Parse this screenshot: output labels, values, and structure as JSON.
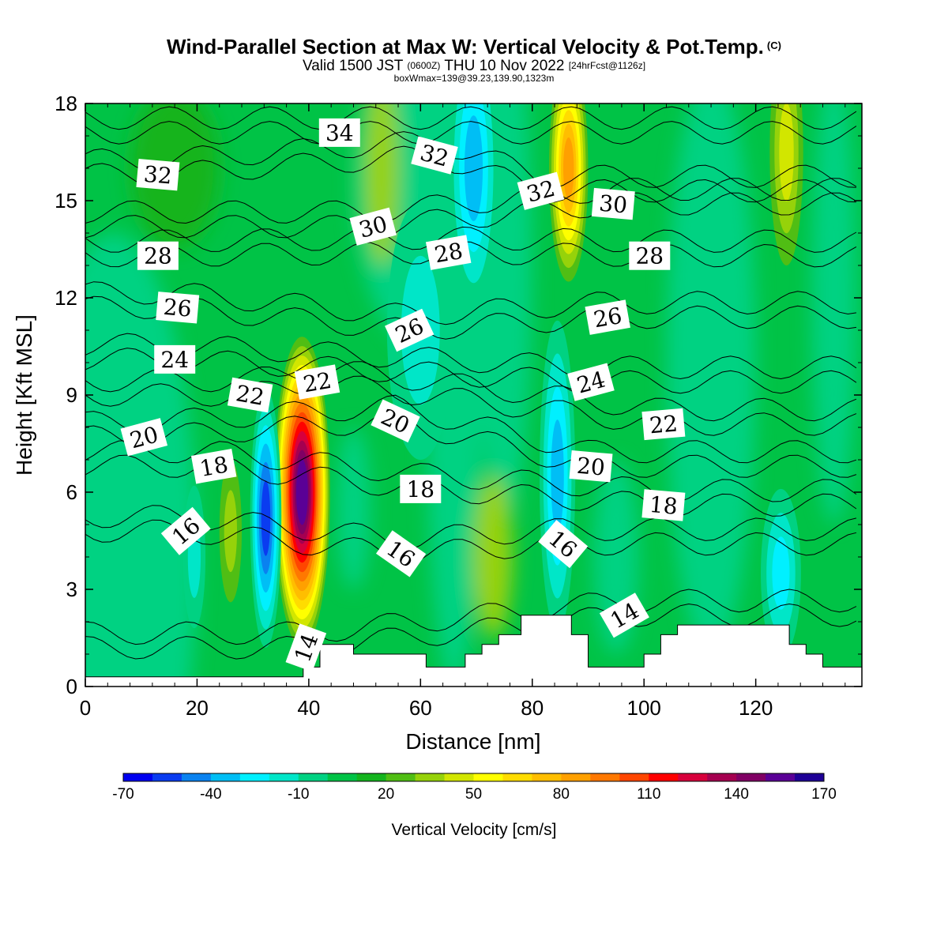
{
  "titles": {
    "main": "Wind-Parallel Section at Max W: Vertical Velocity & Pot.Temp.",
    "copyright": "(C)",
    "valid_prefix": "Valid 1500 JST",
    "valid_utc": "(0600Z)",
    "valid_date": "THU 10 Nov 2022",
    "valid_fcst": "[24hrFcst@1126z]",
    "box": "boxWmax=139@39.23,139.90,1323m"
  },
  "chart_data": {
    "type": "heatmap",
    "title": "Wind-Parallel Section at Max W: Vertical Velocity & Pot.Temp.",
    "xlabel": "Distance [nm]",
    "ylabel": "Height [Kft MSL]",
    "xlim": [
      0,
      139
    ],
    "ylim": [
      0,
      18
    ],
    "x_ticks": [
      "0",
      "20",
      "40",
      "60",
      "80",
      "100",
      "120"
    ],
    "y_ticks": [
      "0",
      "3",
      "6",
      "9",
      "12",
      "15",
      "18"
    ],
    "colorbar": {
      "title": "Vertical Velocity [cm/s]",
      "tick_labels": [
        "-70",
        "-40",
        "-10",
        "20",
        "50",
        "80",
        "110",
        "140",
        "170"
      ],
      "min": -70,
      "max": 170,
      "step": 10,
      "colors": [
        "#0000f0",
        "#0a3cf0",
        "#0a82f0",
        "#00bef5",
        "#00f0ff",
        "#00e6c8",
        "#00d282",
        "#00c346",
        "#14b41e",
        "#50be14",
        "#96d20a",
        "#d2e600",
        "#ffff00",
        "#ffdc00",
        "#ffbe00",
        "#ffa000",
        "#ff7800",
        "#ff4600",
        "#ff0000",
        "#d7003c",
        "#a50050",
        "#800064",
        "#5a0096",
        "#1e0096"
      ]
    },
    "vertical_velocity_features": [
      {
        "x": 38.8,
        "y": 6.0,
        "peak": 155,
        "note": "strong updraft"
      },
      {
        "x": 32.3,
        "y": 5.2,
        "peak": -60
      },
      {
        "x": 26.0,
        "y": 4.8,
        "peak": 30
      },
      {
        "x": 19.5,
        "y": 4.0,
        "peak": -25
      },
      {
        "x": 86.5,
        "y": 16.0,
        "peak": 80
      },
      {
        "x": 84.5,
        "y": 6.5,
        "peak": -45
      },
      {
        "x": 69.5,
        "y": 16.0,
        "peak": -40
      },
      {
        "x": 124.5,
        "y": 3.5,
        "peak": -35
      },
      {
        "x": 125.5,
        "y": 16.5,
        "peak": 45
      },
      {
        "x": 60.0,
        "y": 11.0,
        "peak": -20
      }
    ],
    "terrain": [
      [
        0,
        0.3
      ],
      [
        39,
        0.3
      ],
      [
        39,
        0.6
      ],
      [
        42,
        0.6
      ],
      [
        42,
        1.3
      ],
      [
        48,
        1.3
      ],
      [
        48,
        1.0
      ],
      [
        61,
        1.0
      ],
      [
        61,
        0.6
      ],
      [
        68,
        0.6
      ],
      [
        68,
        1.0
      ],
      [
        71,
        1.0
      ],
      [
        71,
        1.3
      ],
      [
        74,
        1.3
      ],
      [
        74,
        1.6
      ],
      [
        78,
        1.6
      ],
      [
        78,
        2.2
      ],
      [
        87,
        2.2
      ],
      [
        87,
        1.6
      ],
      [
        90,
        1.6
      ],
      [
        90,
        0.6
      ],
      [
        100,
        0.6
      ],
      [
        100,
        1.0
      ],
      [
        103,
        1.0
      ],
      [
        103,
        1.6
      ],
      [
        106,
        1.6
      ],
      [
        106,
        1.9
      ],
      [
        126,
        1.9
      ],
      [
        126,
        1.3
      ],
      [
        129,
        1.3
      ],
      [
        129,
        1.0
      ],
      [
        132,
        1.0
      ],
      [
        132,
        0.6
      ],
      [
        139,
        0.6
      ]
    ],
    "pot_temp_contours": {
      "labels": [
        {
          "text": "14",
          "x": 39.5,
          "y": 1.2,
          "rotate": -70
        },
        {
          "text": "14",
          "x": 96.5,
          "y": 2.2,
          "rotate": -30
        },
        {
          "text": "16",
          "x": 18.0,
          "y": 4.8,
          "rotate": -40
        },
        {
          "text": "16",
          "x": 56.5,
          "y": 4.1,
          "rotate": 35
        },
        {
          "text": "16",
          "x": 85.5,
          "y": 4.4,
          "rotate": 40
        },
        {
          "text": "18",
          "x": 23.0,
          "y": 6.8,
          "rotate": -10
        },
        {
          "text": "18",
          "x": 60.0,
          "y": 6.1,
          "rotate": 0
        },
        {
          "text": "18",
          "x": 103.5,
          "y": 5.6,
          "rotate": 5
        },
        {
          "text": "20",
          "x": 10.5,
          "y": 7.7,
          "rotate": -15
        },
        {
          "text": "20",
          "x": 55.5,
          "y": 8.2,
          "rotate": 25
        },
        {
          "text": "20",
          "x": 90.5,
          "y": 6.8,
          "rotate": 5
        },
        {
          "text": "22",
          "x": 29.5,
          "y": 9.0,
          "rotate": 10
        },
        {
          "text": "22",
          "x": 41.5,
          "y": 9.4,
          "rotate": -10
        },
        {
          "text": "22",
          "x": 103.5,
          "y": 8.1,
          "rotate": -5
        },
        {
          "text": "24",
          "x": 16.0,
          "y": 10.1,
          "rotate": 0
        },
        {
          "text": "24",
          "x": 90.5,
          "y": 9.4,
          "rotate": -15
        },
        {
          "text": "26",
          "x": 16.5,
          "y": 11.7,
          "rotate": 5
        },
        {
          "text": "26",
          "x": 58.0,
          "y": 11.0,
          "rotate": -25
        },
        {
          "text": "26",
          "x": 93.5,
          "y": 11.4,
          "rotate": -10
        },
        {
          "text": "28",
          "x": 13.0,
          "y": 13.3,
          "rotate": 0
        },
        {
          "text": "28",
          "x": 65.0,
          "y": 13.4,
          "rotate": -10
        },
        {
          "text": "28",
          "x": 101.0,
          "y": 13.3,
          "rotate": 0
        },
        {
          "text": "30",
          "x": 51.5,
          "y": 14.2,
          "rotate": -15
        },
        {
          "text": "30",
          "x": 94.5,
          "y": 14.9,
          "rotate": 5
        },
        {
          "text": "32",
          "x": 13.0,
          "y": 15.8,
          "rotate": 5
        },
        {
          "text": "32",
          "x": 62.5,
          "y": 16.4,
          "rotate": 15
        },
        {
          "text": "32",
          "x": 81.5,
          "y": 15.3,
          "rotate": -15
        },
        {
          "text": "34",
          "x": 45.5,
          "y": 17.1,
          "rotate": 0
        }
      ]
    }
  }
}
